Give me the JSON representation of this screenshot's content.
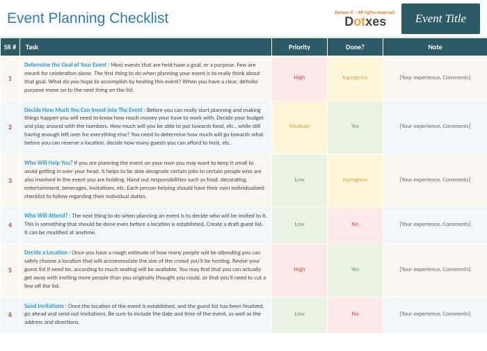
{
  "header": {
    "title": "Event Planning Checklist",
    "logo_top": "Dotxes © - All rights reserved.",
    "logo_main_left": "D",
    "logo_main_accent": "ot",
    "logo_main_right": "xes",
    "badge": "Event Title"
  },
  "columns": {
    "sr": "SR #",
    "task": "Task",
    "priority": "Priority",
    "done": "Done?",
    "note": "Note"
  },
  "priority_colors": {
    "High": "bg-red",
    "Medium": "bg-yellow",
    "Low": "bg-green"
  },
  "done_colors": {
    "Yes": "bg-green",
    "No": "bg-red",
    "Inprogress": "bg-yellow"
  },
  "priority_text": {
    "High": "t-high",
    "Medium": "t-med",
    "Low": "t-low"
  },
  "done_text": {
    "Yes": "t-yes",
    "No": "t-no",
    "Inprogress": "t-prog"
  },
  "rows": [
    {
      "sr": "1",
      "title": "Determine the Goal of Your Event : ",
      "body": "Most events that are held have a goal, or a purpose. Few are meant for celebration alone. The first thing to do when planning your event is to really think about that goal. What do you hope to accomplish by hosting this event? When you have a clear, definite purpose move on to the next thing on the list.",
      "priority": "High",
      "done": "Inprogress",
      "note": "[Your experience, Comments]"
    },
    {
      "sr": "2",
      "title": "Decide How Much You Can Invest into The Event : ",
      "body": "Before you can really start planning and making things happen you will need to know how much money your have to work with. Decide your budget and play around with the numbers. How much will you be able to put towards food, etc., while still having enough left over for everything else? You need to determine how much will go towards what before you can reserve a location, decide how many guests you can afford to host, etc.",
      "priority": "Medium",
      "done": "Yes",
      "note": "[Your experience, Comments]"
    },
    {
      "sr": "3",
      "title": "Who Will Help You?  ",
      "body": "If you are planning the event on your own you may want to keep it small to avoid getting in over your head. It helps to be able designate certain jobs to certain people who are also involved in the event you are holding. Hand out responsibilities such as food, decorating, entertainment, beverages, invitations, etc. Each person helping should have their own individualized checklist to follow regarding their individual duties.",
      "priority": "Low",
      "done": "Inprogress",
      "note": "[Your experience, Comments]"
    },
    {
      "sr": "4",
      "title": "Who Will Attend? : ",
      "body": "The next thing to do when planning an event is to decide who will be invited to it. This is something that should be done even before a location is established. Create a draft guest list. It can be modified at anytime.",
      "priority": "Low",
      "done": "No",
      "note": "[Your experience, Comments]"
    },
    {
      "sr": "5",
      "title": "Decide a Location : ",
      "body": " Once you have a rough estimate of how many people will be attending you can safely choose a location that will accommodate the size of the crowd you'll be hosting. Revise your guest list if need be, according to much seating will be available. You may find that you can actually get away with inviting more people than you originally thought you could, or that you'll need to cut a few off the list.",
      "priority": "High",
      "done": "Yes",
      "note": "[Your experience, Comments]"
    },
    {
      "sr": "6",
      "title": "Send Invitations : ",
      "body": "Once the location of the event is established, and the guest list has been finalized, go ahead and send out invitations. Be sure to include the date and time of the event, as well as the address and directions.",
      "priority": "Low",
      "done": "No",
      "note": "[Your experience, Comments]"
    }
  ]
}
